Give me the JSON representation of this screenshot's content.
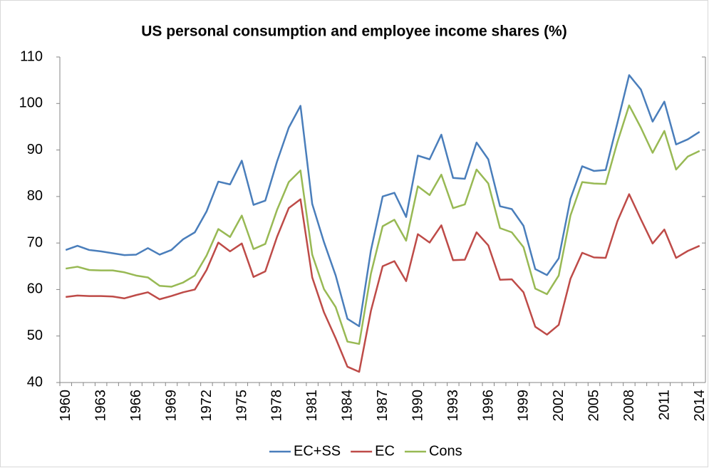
{
  "chart_data": {
    "type": "line",
    "title": "US personal consumption and employee income shares (%)",
    "categories": [
      "1960",
      null,
      null,
      "1963",
      null,
      null,
      "1966",
      null,
      null,
      "1969",
      null,
      null,
      "1972",
      null,
      null,
      "1975",
      null,
      null,
      "1978",
      null,
      null,
      "1981",
      null,
      null,
      "1984",
      null,
      null,
      "1987",
      null,
      null,
      "1990",
      null,
      null,
      "1993",
      null,
      null,
      "1996",
      null,
      null,
      "1999",
      null,
      null,
      "2002",
      null,
      null,
      "2005",
      null,
      null,
      "2008",
      null,
      null,
      "2011",
      null,
      null,
      "2014"
    ],
    "series": [
      {
        "name": "EC+SS",
        "color": "#4a7ebb",
        "values": [
          68.5,
          69.4,
          68.5,
          68.2,
          67.8,
          67.4,
          67.5,
          68.9,
          67.5,
          68.5,
          70.8,
          72.3,
          76.8,
          83.2,
          82.6,
          87.7,
          78.2,
          79.1,
          87.5,
          94.8,
          99.5,
          78.4,
          70.2,
          63,
          53.7,
          52.1,
          68.4,
          80,
          80.8,
          75.6,
          88.8,
          88,
          93.3,
          84,
          83.8,
          91.6,
          88,
          77.9,
          77.3,
          73.7,
          64.4,
          63.1,
          66.7,
          79.5,
          86.5,
          85.5,
          85.7,
          95.8,
          106.1,
          103,
          96.1,
          100.4,
          91.2,
          92.3,
          93.9
        ]
      },
      {
        "name": "EC",
        "color": "#be4b48",
        "values": [
          58.4,
          58.7,
          58.6,
          58.6,
          58.5,
          58.1,
          58.8,
          59.4,
          57.9,
          58.6,
          59.4,
          60,
          64.2,
          70.1,
          68.2,
          69.9,
          62.7,
          63.9,
          71.3,
          77.5,
          79.4,
          62.6,
          55.1,
          49.5,
          43.4,
          42.3,
          55.4,
          65,
          66.1,
          61.8,
          71.9,
          70.1,
          73.8,
          66.3,
          66.4,
          72.3,
          69.5,
          62.1,
          62.2,
          59.4,
          52,
          50.3,
          52.4,
          62.3,
          67.9,
          66.9,
          66.8,
          74.7,
          80.5,
          75.1,
          69.9,
          72.9,
          66.8,
          68.3,
          69.4
        ]
      },
      {
        "name": "Cons",
        "color": "#98b954",
        "values": [
          64.5,
          64.9,
          64.2,
          64.1,
          64.1,
          63.7,
          63,
          62.6,
          60.8,
          60.6,
          61.5,
          63,
          67.3,
          73,
          71.3,
          75.9,
          68.7,
          69.8,
          77.1,
          83.1,
          85.6,
          67.5,
          60.1,
          56.2,
          48.8,
          48.3,
          63.4,
          73.6,
          75,
          70.5,
          82.2,
          80.3,
          84.7,
          77.5,
          78.3,
          85.8,
          82.8,
          73.2,
          72.3,
          69.1,
          60.2,
          59,
          63,
          75.9,
          83.1,
          82.8,
          82.7,
          91.7,
          99.6,
          94.8,
          89.4,
          94.1,
          85.8,
          88.6,
          89.8
        ]
      }
    ],
    "ylim": [
      40,
      110
    ],
    "yticks": [
      40,
      50,
      60,
      70,
      80,
      90,
      100,
      110
    ],
    "grid": false,
    "legend": "bottom"
  }
}
